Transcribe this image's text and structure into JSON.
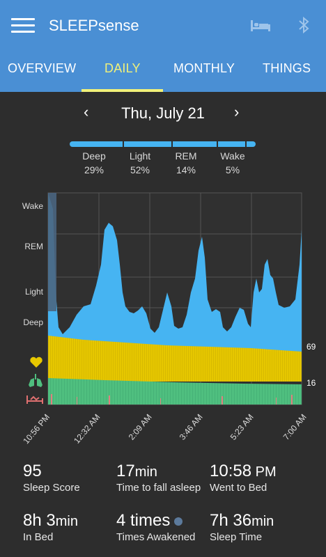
{
  "app": {
    "title": "SLEEPsense"
  },
  "tabs": [
    "OVERVIEW",
    "DAILY",
    "MONTHLY",
    "THINGS"
  ],
  "date": {
    "label": "Thu, July 21",
    "prev": "‹",
    "next": "›"
  },
  "stages": [
    {
      "name": "Deep",
      "pct": "29%"
    },
    {
      "name": "Light",
      "pct": "52%"
    },
    {
      "name": "REM",
      "pct": "14%"
    },
    {
      "name": "Wake",
      "pct": "5%"
    }
  ],
  "chart": {
    "y_labels": [
      "Wake",
      "REM",
      "Light",
      "Deep"
    ],
    "x_labels": [
      "10:56 PM",
      "12:32 AM",
      "2:09 AM",
      "3:46 AM",
      "5:23 AM",
      "7:00 AM"
    ],
    "heart_rate": "69",
    "breathing": "16"
  },
  "stats": [
    {
      "value": "95",
      "unit": "",
      "label": "Sleep Score"
    },
    {
      "value": "17",
      "unit": "min",
      "label": "Time to fall asleep"
    },
    {
      "value": "10:58",
      "unit": " PM",
      "label": "Went to Bed"
    },
    {
      "value": "8h 3",
      "unit": "min",
      "label": "In Bed"
    },
    {
      "value": "4 times",
      "unit": "",
      "label": "Times Awakened"
    },
    {
      "value": "7h 36",
      "unit": "min",
      "label": "Sleep Time"
    }
  ],
  "colors": {
    "appbar": "#4a8fd4",
    "accent": "#f1f179",
    "sleep": "#46b4f2",
    "heart": "#e6c700",
    "breath": "#4fbf7f"
  }
}
